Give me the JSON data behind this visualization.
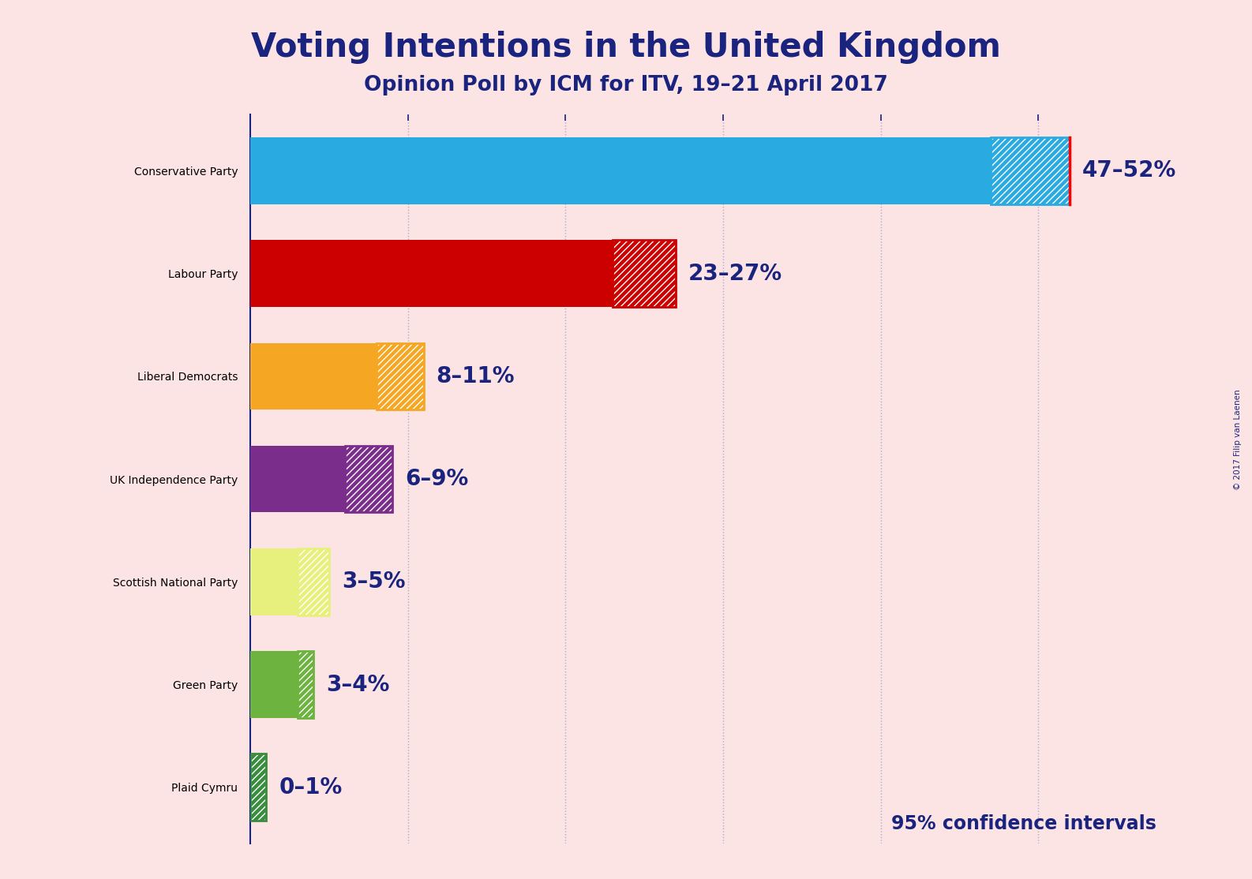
{
  "title": "Voting Intentions in the United Kingdom",
  "subtitle": "Opinion Poll by ICM for ITV, 19–21 April 2017",
  "copyright": "© 2017 Filip van Laenen",
  "background_color": "#fce4e4",
  "title_color": "#1a237e",
  "subtitle_color": "#1a237e",
  "bar_label_color": "#1a237e",
  "confidence_label": "95% confidence intervals",
  "parties": [
    "Conservative Party",
    "Labour Party",
    "Liberal Democrats",
    "UK Independence Party",
    "Scottish National Party",
    "Green Party",
    "Plaid Cymru"
  ],
  "low_values": [
    47,
    23,
    8,
    6,
    3,
    3,
    0
  ],
  "high_values": [
    52,
    27,
    11,
    9,
    5,
    4,
    1
  ],
  "solid_colors": [
    "#29ABE2",
    "#CC0000",
    "#F5A623",
    "#7B2D8B",
    "#E8F07D",
    "#6DB33F",
    "#3A8C3F"
  ],
  "labels": [
    "47–52%",
    "23–27%",
    "8–11%",
    "6–9%",
    "3–5%",
    "3–4%",
    "0–1%"
  ],
  "xlim": [
    0,
    58
  ],
  "error_line_color": "#FF0000",
  "grid_color": "#aaaacc",
  "axis_line_color": "#1a237e",
  "tick_positions": [
    10,
    20,
    30,
    40,
    50
  ],
  "bar_height": 0.65
}
